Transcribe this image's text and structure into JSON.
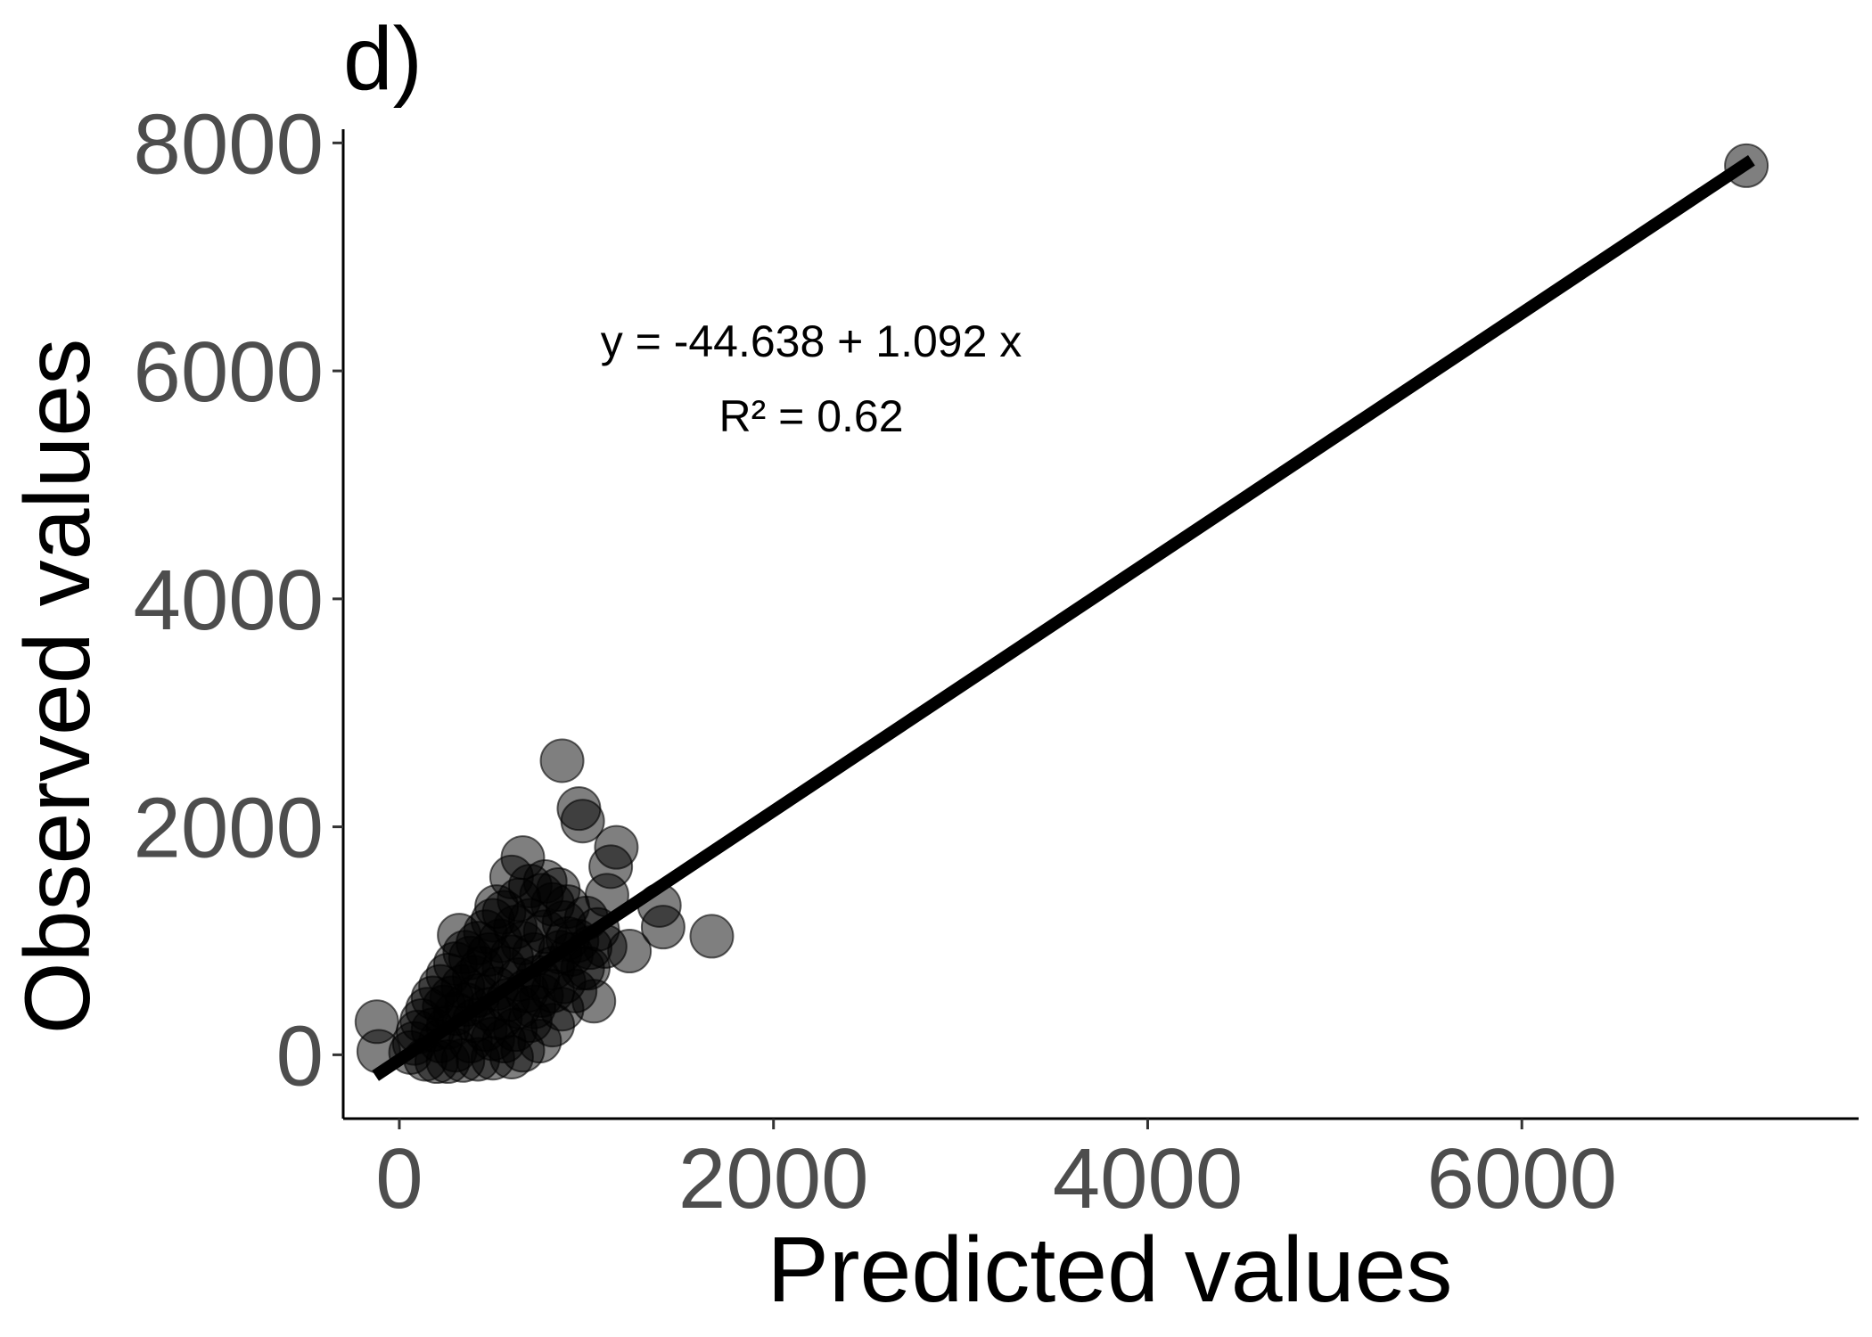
{
  "chart_data": {
    "type": "scatter",
    "panel_label": "d)",
    "xlabel": "Predicted values",
    "ylabel": "Observed values",
    "xlim": [
      -300,
      7800
    ],
    "ylim": [
      -560,
      8120
    ],
    "x_ticks": [
      0,
      2000,
      4000,
      6000
    ],
    "y_ticks": [
      0,
      2000,
      4000,
      6000,
      8000
    ],
    "grid": false,
    "colors": {
      "points": "#000000",
      "fit_line": "#000000",
      "tick_labels": "#4d4d4d"
    },
    "annotations": {
      "equation": "y = -44.638 + 1.092 x",
      "r_squared": "R² = 0.62"
    },
    "regression": {
      "intercept": -44.638,
      "slope": 1.092,
      "x_range": [
        -100,
        7200
      ]
    },
    "points": [
      {
        "x": 7200,
        "y": 7800
      },
      {
        "x": 870,
        "y": 2580
      },
      {
        "x": 960,
        "y": 2160
      },
      {
        "x": 980,
        "y": 2050
      },
      {
        "x": 1160,
        "y": 1820
      },
      {
        "x": 1130,
        "y": 1650
      },
      {
        "x": 660,
        "y": 1730
      },
      {
        "x": 1670,
        "y": 1040
      },
      {
        "x": 1390,
        "y": 1310
      },
      {
        "x": 1410,
        "y": 1120
      },
      {
        "x": 1230,
        "y": 910
      },
      {
        "x": 1010,
        "y": 760
      },
      {
        "x": 1040,
        "y": 470
      },
      {
        "x": 870,
        "y": 400
      },
      {
        "x": -120,
        "y": 290
      },
      {
        "x": -110,
        "y": 30
      },
      {
        "x": 320,
        "y": 1050
      },
      {
        "x": 380,
        "y": 850
      },
      {
        "x": 600,
        "y": 1560
      },
      {
        "x": 700,
        "y": 1480
      },
      {
        "x": 780,
        "y": 1520
      },
      {
        "x": 850,
        "y": 1450
      },
      {
        "x": 900,
        "y": 1300
      },
      {
        "x": 1000,
        "y": 1200
      },
      {
        "x": 1060,
        "y": 1100
      },
      {
        "x": 1100,
        "y": 950
      },
      {
        "x": 950,
        "y": 1000
      },
      {
        "x": 1110,
        "y": 1400
      },
      {
        "x": 560,
        "y": 1250
      },
      {
        "x": 500,
        "y": 1180
      },
      {
        "x": 460,
        "y": 1080
      },
      {
        "x": 420,
        "y": 980
      },
      {
        "x": 350,
        "y": 900
      },
      {
        "x": 300,
        "y": 800
      },
      {
        "x": 260,
        "y": 700
      },
      {
        "x": 220,
        "y": 600
      },
      {
        "x": 180,
        "y": 500
      },
      {
        "x": 150,
        "y": 400
      },
      {
        "x": 120,
        "y": 300
      },
      {
        "x": 100,
        "y": 200
      },
      {
        "x": 80,
        "y": 100
      },
      {
        "x": 60,
        "y": 20
      },
      {
        "x": 140,
        "y": -40
      },
      {
        "x": 200,
        "y": -60
      },
      {
        "x": 260,
        "y": -60
      },
      {
        "x": 340,
        "y": -50
      },
      {
        "x": 420,
        "y": -40
      },
      {
        "x": 500,
        "y": -30
      },
      {
        "x": 600,
        "y": -20
      },
      {
        "x": 560,
        "y": 120
      },
      {
        "x": 750,
        "y": 120
      },
      {
        "x": 820,
        "y": 260
      },
      {
        "x": 700,
        "y": 300
      },
      {
        "x": 640,
        "y": 420
      },
      {
        "x": 760,
        "y": 520
      },
      {
        "x": 880,
        "y": 640
      },
      {
        "x": 820,
        "y": 760
      },
      {
        "x": 720,
        "y": 880
      },
      {
        "x": 660,
        "y": 980
      },
      {
        "x": 780,
        "y": 1080
      },
      {
        "x": 880,
        "y": 1160
      },
      {
        "x": 620,
        "y": 1120
      },
      {
        "x": 540,
        "y": 1000
      },
      {
        "x": 480,
        "y": 880
      },
      {
        "x": 560,
        "y": 760
      },
      {
        "x": 640,
        "y": 660
      },
      {
        "x": 520,
        "y": 580
      },
      {
        "x": 420,
        "y": 520
      },
      {
        "x": 360,
        "y": 440
      },
      {
        "x": 300,
        "y": 360
      },
      {
        "x": 260,
        "y": 240
      },
      {
        "x": 220,
        "y": 120
      },
      {
        "x": 300,
        "y": 40
      },
      {
        "x": 380,
        "y": 120
      },
      {
        "x": 460,
        "y": 220
      },
      {
        "x": 540,
        "y": 320
      },
      {
        "x": 620,
        "y": 220
      },
      {
        "x": 680,
        "y": 560
      },
      {
        "x": 740,
        "y": 680
      },
      {
        "x": 600,
        "y": 860
      },
      {
        "x": 920,
        "y": 880
      },
      {
        "x": 980,
        "y": 760
      },
      {
        "x": 940,
        "y": 560
      },
      {
        "x": 1020,
        "y": 940
      },
      {
        "x": 400,
        "y": 680
      },
      {
        "x": 340,
        "y": 600
      },
      {
        "x": 280,
        "y": 500
      },
      {
        "x": 480,
        "y": 400
      },
      {
        "x": 580,
        "y": 480
      },
      {
        "x": 700,
        "y": 1180
      },
      {
        "x": 820,
        "y": 1320
      },
      {
        "x": 760,
        "y": 1400
      },
      {
        "x": 640,
        "y": 1360
      },
      {
        "x": 520,
        "y": 1300
      },
      {
        "x": 900,
        "y": 1020
      },
      {
        "x": 860,
        "y": 900
      },
      {
        "x": 440,
        "y": 760
      },
      {
        "x": 240,
        "y": 420
      },
      {
        "x": 180,
        "y": 220
      },
      {
        "x": 400,
        "y": 300
      },
      {
        "x": 500,
        "y": 140
      },
      {
        "x": 660,
        "y": 40
      },
      {
        "x": 820,
        "y": 560
      },
      {
        "x": 720,
        "y": 420
      }
    ]
  }
}
